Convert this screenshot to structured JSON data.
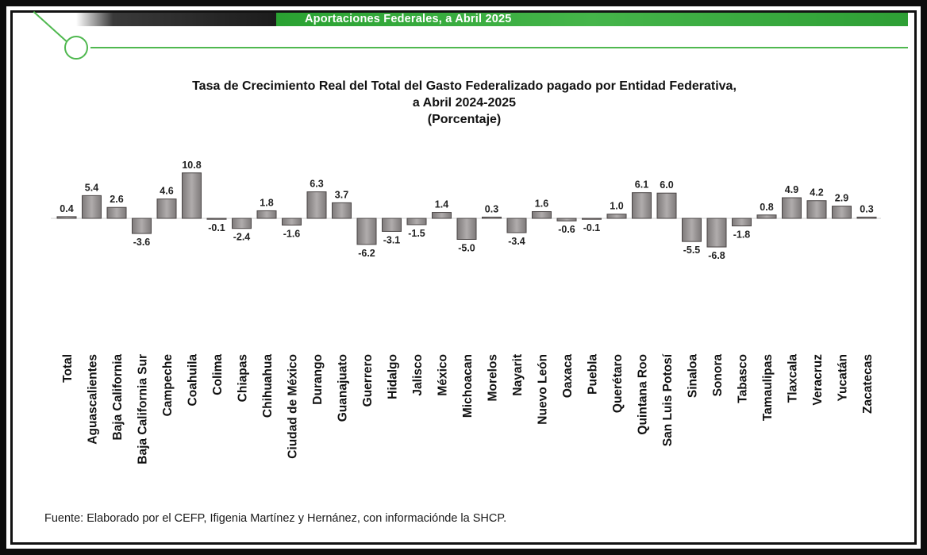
{
  "header": {
    "banner_title": "Aportaciones Federales, a Abril 2025",
    "colors": {
      "green": "#3aad3f",
      "dark": "#1b1b1b",
      "line": "#4fb84f"
    }
  },
  "chart_data": {
    "type": "bar",
    "title_lines": [
      "Tasa de Crecimiento Real del Total del Gasto Federalizado pagado por Entidad Federativa,",
      "a Abril 2024-2025",
      "(Porcentaje)"
    ],
    "categories": [
      "Total",
      "Aguascalientes",
      "Baja California",
      "Baja California Sur",
      "Campeche",
      "Coahuila",
      "Colima",
      "Chiapas",
      "Chihuahua",
      "Ciudad de México",
      "Durango",
      "Guanajuato",
      "Guerrero",
      "Hidalgo",
      "Jalisco",
      "México",
      "Michoacan",
      "Morelos",
      "Nayarit",
      "Nuevo León",
      "Oaxaca",
      "Puebla",
      "Querétaro",
      "Quintana Roo",
      "San Luis Potosí",
      "Sinaloa",
      "Sonora",
      "Tabasco",
      "Tamaulipas",
      "Tlaxcala",
      "Veracruz",
      "Yucatán",
      "Zacatecas"
    ],
    "values": [
      0.4,
      5.4,
      2.6,
      -3.6,
      4.6,
      10.8,
      -0.1,
      -2.4,
      1.8,
      -1.6,
      6.3,
      3.7,
      -6.2,
      -3.1,
      -1.5,
      1.4,
      -5.0,
      0.3,
      -3.4,
      1.6,
      -0.6,
      -0.1,
      1.0,
      6.1,
      6.0,
      -5.5,
      -6.8,
      -1.8,
      0.8,
      4.9,
      4.2,
      2.9,
      0.3
    ],
    "value_labels": [
      "0.4",
      "5.4",
      "2.6",
      "-3.6",
      "4.6",
      "10.8",
      "-0.1",
      "-2.4",
      "1.8",
      "-1.6",
      "6.3",
      "3.7",
      "-6.2",
      "-3.1",
      "-1.5",
      "1.4",
      "-5.0",
      "0.3",
      "-3.4",
      "1.6",
      "-0.6",
      "-0.1",
      "1.0",
      "6.1",
      "6.0",
      "-5.5",
      "-6.8",
      "-1.8",
      "0.8",
      "4.9",
      "4.2",
      "2.9",
      "0.3"
    ],
    "xlabel": "",
    "ylabel": "",
    "grid": false,
    "legend": "none",
    "bar_color": "#9b9797"
  },
  "footer": {
    "source": "Fuente: Elaborado por el CEFP, Ifigenia Martínez y Hernánez, con informaciónde la SHCP."
  }
}
